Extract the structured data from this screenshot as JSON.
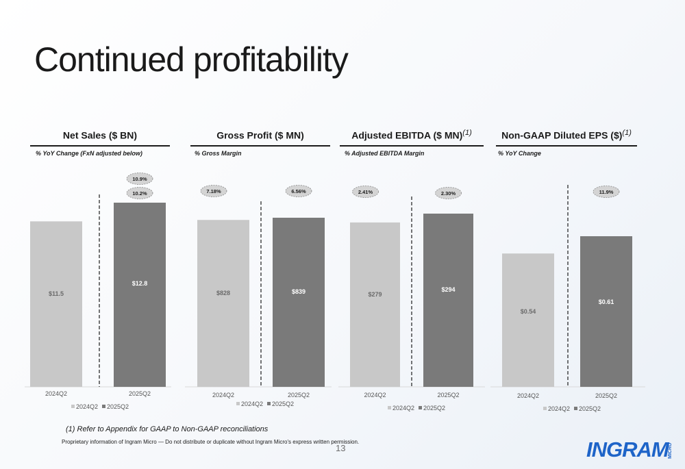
{
  "title": "Continued profitability",
  "footnote": "(1) Refer to Appendix for GAAP to Non-GAAP reconciliations",
  "legal": "Proprietary information of Ingram Micro — Do not distribute or duplicate without Ingram Micro's express written permission.",
  "page_number": "13",
  "logo": {
    "text": "INGRAM",
    "sub": "MICRO",
    "color": "#1e64c8"
  },
  "colors": {
    "bar_2024": "#c8c8c8",
    "bar_2025": "#7a7a7a",
    "badge": "#d4d4d4"
  },
  "chart_data": [
    {
      "type": "bar",
      "title": "Net Sales ($ BN)",
      "title_note": "",
      "subtitle": "% YoY Change (FxN adjusted below)",
      "categories": [
        "2024Q2",
        "2025Q2"
      ],
      "series": [
        {
          "name": "2024Q2",
          "values": [
            11.5,
            null
          ],
          "labels": [
            "$11.5",
            ""
          ]
        },
        {
          "name": "2025Q2",
          "values": [
            null,
            12.8
          ],
          "labels": [
            "",
            "$12.8"
          ]
        }
      ],
      "badges": [
        {
          "category": "2025Q2",
          "text": "10.9%"
        },
        {
          "category": "2025Q2",
          "text": "10.2%"
        }
      ],
      "ylim": [
        0,
        13.5
      ]
    },
    {
      "type": "bar",
      "title": "Gross Profit ($ MN)",
      "title_note": "",
      "subtitle": "% Gross Margin",
      "categories": [
        "2024Q2",
        "2025Q2"
      ],
      "series": [
        {
          "name": "2024Q2",
          "values": [
            828,
            null
          ],
          "labels": [
            "$828",
            ""
          ]
        },
        {
          "name": "2025Q2",
          "values": [
            null,
            839
          ],
          "labels": [
            "",
            "$839"
          ]
        }
      ],
      "badges": [
        {
          "category": "2024Q2",
          "text": "7.18%"
        },
        {
          "category": "2025Q2",
          "text": "6.56%"
        }
      ],
      "ylim": [
        0,
        920
      ]
    },
    {
      "type": "bar",
      "title": "Adjusted EBITDA ($ MN)",
      "title_note": "(1)",
      "subtitle": "% Adjusted EBITDA Margin",
      "categories": [
        "2024Q2",
        "2025Q2"
      ],
      "series": [
        {
          "name": "2024Q2",
          "values": [
            279,
            null
          ],
          "labels": [
            "$279",
            ""
          ]
        },
        {
          "name": "2025Q2",
          "values": [
            null,
            294
          ],
          "labels": [
            "",
            "$294"
          ]
        }
      ],
      "badges": [
        {
          "category": "2024Q2",
          "text": "2.41%"
        },
        {
          "category": "2025Q2",
          "text": "2.30%"
        }
      ],
      "ylim": [
        0,
        308
      ]
    },
    {
      "type": "bar",
      "title": "Non-GAAP Diluted EPS ($)",
      "title_note": "(1)",
      "subtitle": "% YoY Change",
      "categories": [
        "2024Q2",
        "2025Q2"
      ],
      "series": [
        {
          "name": "2024Q2",
          "values": [
            0.54,
            null
          ],
          "labels": [
            "$0.54",
            ""
          ]
        },
        {
          "name": "2025Q2",
          "values": [
            null,
            0.61
          ],
          "labels": [
            "",
            "$0.61"
          ]
        }
      ],
      "badges": [
        {
          "category": "2025Q2",
          "text": "11.9%"
        }
      ],
      "ylim": [
        0,
        0.82
      ]
    }
  ]
}
